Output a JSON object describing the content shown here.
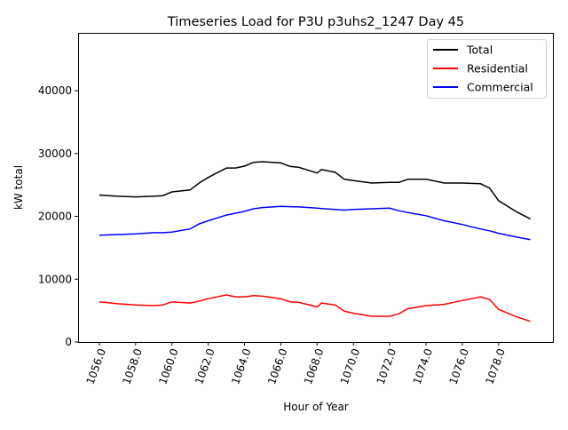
{
  "chart_data": {
    "type": "line",
    "title": "Timeseries Load for P3U p3uhs2_1247  Day 45",
    "xlabel": "Hour of Year",
    "ylabel": "kW total",
    "xlim": [
      1054.83,
      1081.04
    ],
    "ylim": [
      0,
      49200
    ],
    "xticks": [
      1056,
      1058,
      1060,
      1062,
      1064,
      1066,
      1068,
      1070,
      1072,
      1074,
      1076,
      1078
    ],
    "xtick_labels": [
      "1056.0",
      "1058.0",
      "1060.0",
      "1062.0",
      "1064.0",
      "1066.0",
      "1068.0",
      "1070.0",
      "1072.0",
      "1074.0",
      "1076.0",
      "1078.0"
    ],
    "yticks": [
      0,
      10000,
      20000,
      30000,
      40000
    ],
    "ytick_labels": [
      "0",
      "10000",
      "20000",
      "30000",
      "40000"
    ],
    "grid": false,
    "legend_position": "top-right",
    "x": [
      1056,
      1057,
      1058,
      1059,
      1059.5,
      1060,
      1061,
      1061.5,
      1062,
      1063,
      1063.5,
      1064,
      1064.5,
      1065,
      1066,
      1066.5,
      1067,
      1068,
      1068.25,
      1069,
      1069.5,
      1070,
      1071,
      1072,
      1072.5,
      1073,
      1074,
      1075,
      1076,
      1077,
      1077.5,
      1078,
      1079,
      1079.75
    ],
    "series": [
      {
        "name": "Total",
        "color": "#000000",
        "values": [
          23400,
          23200,
          23100,
          23200,
          23300,
          23900,
          24200,
          25300,
          26200,
          27700,
          27700,
          28000,
          28600,
          28700,
          28500,
          27950,
          27800,
          26900,
          27450,
          27000,
          25900,
          25700,
          25300,
          25400,
          25400,
          25900,
          25900,
          25300,
          25300,
          25200,
          24500,
          22500,
          20700,
          19600
        ]
      },
      {
        "name": "Residential",
        "color": "#ff0000",
        "values": [
          6400,
          6100,
          5900,
          5800,
          5900,
          6400,
          6200,
          6500,
          6900,
          7500,
          7200,
          7200,
          7400,
          7300,
          6900,
          6400,
          6300,
          5600,
          6200,
          5900,
          4900,
          4600,
          4100,
          4100,
          4500,
          5300,
          5800,
          6000,
          6600,
          7200,
          6800,
          5200,
          4000,
          3300
        ]
      },
      {
        "name": "Commercial",
        "color": "#0000ff",
        "values": [
          17000,
          17100,
          17200,
          17400,
          17400,
          17500,
          18000,
          18800,
          19300,
          20200,
          20500,
          20800,
          21200,
          21400,
          21600,
          21550,
          21500,
          21300,
          21250,
          21100,
          21000,
          21100,
          21200,
          21300,
          20900,
          20600,
          20100,
          19300,
          18700,
          18000,
          17700,
          17300,
          16700,
          16300
        ]
      }
    ]
  }
}
